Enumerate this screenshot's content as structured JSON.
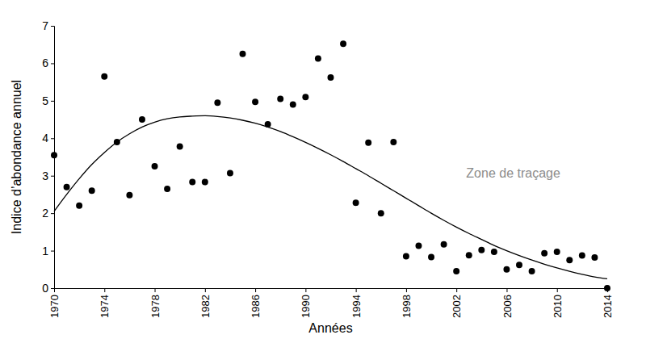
{
  "chart_data": {
    "type": "scatter",
    "x_label": "Années",
    "y_label": "Indice d’abondance annuel",
    "annotation": "Zone de traçage",
    "x": [
      1970,
      1971,
      1972,
      1973,
      1974,
      1975,
      1976,
      1977,
      1978,
      1979,
      1980,
      1981,
      1982,
      1983,
      1984,
      1985,
      1986,
      1987,
      1988,
      1989,
      1990,
      1991,
      1992,
      1993,
      1994,
      1995,
      1996,
      1997,
      1998,
      1999,
      2000,
      2001,
      2002,
      2003,
      2004,
      2005,
      2006,
      2007,
      2008,
      2009,
      2010,
      2011,
      2012,
      2013,
      2014
    ],
    "series": [
      {
        "type": "scatter",
        "color": "#000000",
        "marker": "circle",
        "values": [
          3.55,
          2.7,
          2.2,
          2.6,
          5.65,
          3.9,
          2.48,
          4.5,
          3.25,
          2.65,
          3.78,
          2.83,
          2.83,
          4.95,
          3.07,
          6.25,
          4.97,
          4.37,
          5.05,
          4.9,
          5.1,
          6.13,
          5.62,
          6.52,
          2.28,
          3.88,
          2.0,
          3.9,
          0.85,
          1.13,
          0.83,
          1.17,
          0.45,
          0.88,
          1.02,
          0.97,
          0.5,
          0.62,
          0.45,
          0.93,
          0.97,
          0.75,
          0.87,
          0.82,
          0.0
        ]
      },
      {
        "type": "line",
        "color": "#000000",
        "line_style": "solid",
        "values": [
          2.05,
          2.5,
          2.92,
          3.3,
          3.62,
          3.9,
          4.12,
          4.3,
          4.43,
          4.52,
          4.57,
          4.59,
          4.6,
          4.58,
          4.54,
          4.48,
          4.4,
          4.3,
          4.18,
          4.04,
          3.89,
          3.73,
          3.56,
          3.38,
          3.19,
          3.0,
          2.8,
          2.6,
          2.4,
          2.2,
          2.0,
          1.81,
          1.63,
          1.46,
          1.3,
          1.14,
          1.0,
          0.87,
          0.75,
          0.64,
          0.54,
          0.45,
          0.37,
          0.3,
          0.25
        ]
      }
    ],
    "xlim": [
      1970,
      2014
    ],
    "xticks": [
      1970,
      1974,
      1978,
      1982,
      1986,
      1990,
      1994,
      1998,
      2002,
      2006,
      2010,
      2014
    ],
    "ylim": [
      0,
      7
    ],
    "yticks": [
      0,
      1,
      2,
      3,
      4,
      5,
      6,
      7
    ],
    "grid": false
  }
}
